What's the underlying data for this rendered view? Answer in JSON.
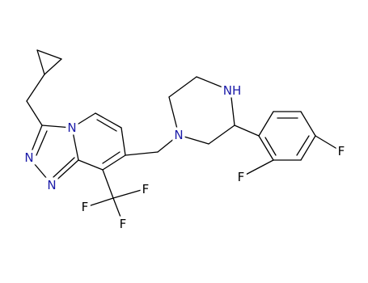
{
  "atoms": [
    "N",
    "N",
    "N",
    "F",
    "F",
    "F",
    "N",
    "NH",
    "F",
    "F"
  ]
}
